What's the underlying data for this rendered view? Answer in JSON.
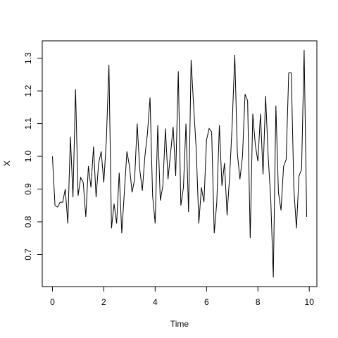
{
  "chart_data": {
    "type": "line",
    "x_label": "Time",
    "y_label": "X",
    "color": "#000000",
    "x": [
      0,
      0.1,
      0.2,
      0.3,
      0.4,
      0.5,
      0.6,
      0.7,
      0.8,
      0.9,
      1,
      1.1,
      1.2,
      1.3,
      1.4,
      1.5,
      1.6,
      1.7,
      1.8,
      1.9,
      2,
      2.1,
      2.2,
      2.3,
      2.4,
      2.5,
      2.6,
      2.7,
      2.8,
      2.9,
      3,
      3.1,
      3.2,
      3.3,
      3.4,
      3.5,
      3.6,
      3.7,
      3.8,
      3.9,
      4,
      4.1,
      4.2,
      4.3,
      4.4,
      4.5,
      4.6,
      4.7,
      4.8,
      4.9,
      5,
      5.1,
      5.2,
      5.3,
      5.4,
      5.5,
      5.6,
      5.7,
      5.8,
      5.9,
      6,
      6.1,
      6.2,
      6.3,
      6.4,
      6.5,
      6.6,
      6.7,
      6.8,
      6.9,
      7,
      7.1,
      7.2,
      7.3,
      7.4,
      7.5,
      7.6,
      7.7,
      7.8,
      7.9,
      8,
      8.1,
      8.2,
      8.3,
      8.4,
      8.5,
      8.6,
      8.7,
      8.8,
      8.9,
      9,
      9.1,
      9.2,
      9.3,
      9.4,
      9.5,
      9.6,
      9.7,
      9.8,
      9.9
    ],
    "values": [
      1.0,
      0.85,
      0.845,
      0.86,
      0.86,
      0.9,
      0.795,
      1.06,
      0.875,
      1.205,
      0.88,
      0.935,
      0.92,
      0.815,
      0.97,
      0.905,
      1.03,
      0.875,
      0.98,
      1.015,
      0.92,
      1.05,
      1.28,
      0.78,
      0.855,
      0.795,
      0.95,
      0.765,
      0.89,
      1.015,
      0.97,
      0.89,
      0.93,
      1.1,
      0.96,
      0.895,
      1.0,
      1.07,
      1.18,
      0.88,
      0.795,
      1.095,
      0.865,
      0.91,
      1.085,
      0.93,
      1.01,
      1.09,
      0.94,
      1.26,
      0.85,
      0.905,
      1.1,
      0.83,
      1.295,
      1.15,
      1.02,
      0.795,
      0.905,
      0.86,
      1.05,
      1.085,
      1.075,
      0.765,
      0.86,
      1.095,
      0.91,
      0.98,
      0.82,
      0.94,
      1.1,
      1.31,
      1.01,
      0.93,
      1.0,
      1.19,
      1.17,
      0.75,
      1.13,
      1.035,
      0.985,
      1.13,
      0.945,
      1.185,
      1.0,
      0.87,
      0.63,
      1.155,
      0.89,
      0.835,
      0.97,
      0.99,
      1.255,
      1.255,
      0.9,
      0.78,
      0.94,
      0.96,
      1.325,
      0.815
    ],
    "xlim": [
      -0.396,
      10.296
    ],
    "ylim": [
      0.602,
      1.353
    ],
    "xticks": [
      0,
      2,
      4,
      6,
      8,
      10
    ],
    "yticks": [
      0.7,
      0.8,
      0.9,
      {
        "value": 1,
        "label": "1.0"
      },
      1.1,
      1.2,
      1.3
    ]
  }
}
